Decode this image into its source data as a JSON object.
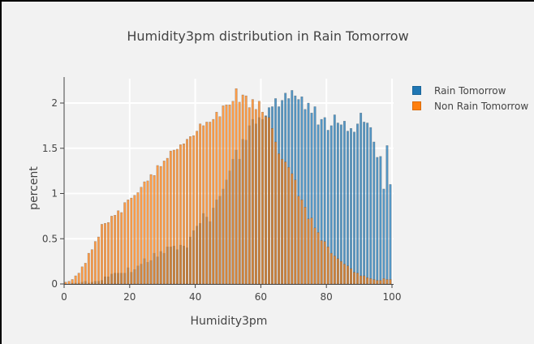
{
  "chart_data": {
    "type": "bar",
    "title": "Humidity3pm distribution in Rain Tomorrow",
    "xlabel": "Humidity3pm",
    "ylabel": "percent",
    "xlim": [
      0,
      100
    ],
    "ylim": [
      0,
      2.25
    ],
    "x_ticks": [
      "0",
      "20",
      "40",
      "60",
      "80",
      "100"
    ],
    "y_ticks": [
      "0",
      "0.5",
      "1",
      "1.5",
      "2"
    ],
    "grid": true,
    "barmode": "overlay",
    "legend_position": "right-top",
    "bin_width": 1,
    "x": [
      0,
      1,
      2,
      3,
      4,
      5,
      6,
      7,
      8,
      9,
      10,
      11,
      12,
      13,
      14,
      15,
      16,
      17,
      18,
      19,
      20,
      21,
      22,
      23,
      24,
      25,
      26,
      27,
      28,
      29,
      30,
      31,
      32,
      33,
      34,
      35,
      36,
      37,
      38,
      39,
      40,
      41,
      42,
      43,
      44,
      45,
      46,
      47,
      48,
      49,
      50,
      51,
      52,
      53,
      54,
      55,
      56,
      57,
      58,
      59,
      60,
      61,
      62,
      63,
      64,
      65,
      66,
      67,
      68,
      69,
      70,
      71,
      72,
      73,
      74,
      75,
      76,
      77,
      78,
      79,
      80,
      81,
      82,
      83,
      84,
      85,
      86,
      87,
      88,
      89,
      90,
      91,
      92,
      93,
      94,
      95,
      96,
      97,
      98,
      99
    ],
    "series": [
      {
        "name": "Rain Tomorrow",
        "color": "#1f77b4",
        "values": [
          0.0,
          0.0,
          0.01,
          0.01,
          0.01,
          0.02,
          0.03,
          0.01,
          0.02,
          0.03,
          0.03,
          0.04,
          0.08,
          0.08,
          0.11,
          0.12,
          0.12,
          0.12,
          0.12,
          0.18,
          0.13,
          0.16,
          0.2,
          0.22,
          0.28,
          0.24,
          0.26,
          0.34,
          0.3,
          0.36,
          0.34,
          0.41,
          0.41,
          0.42,
          0.38,
          0.43,
          0.42,
          0.4,
          0.52,
          0.59,
          0.64,
          0.67,
          0.78,
          0.74,
          0.69,
          0.84,
          0.93,
          0.97,
          1.05,
          1.15,
          1.25,
          1.38,
          1.48,
          1.38,
          1.6,
          1.59,
          1.75,
          1.82,
          1.77,
          1.84,
          1.82,
          1.86,
          1.95,
          1.96,
          2.05,
          1.96,
          2.03,
          2.11,
          2.05,
          2.14,
          2.08,
          2.04,
          2.07,
          1.93,
          2.0,
          1.89,
          1.96,
          1.76,
          1.82,
          1.84,
          1.7,
          1.75,
          1.87,
          1.78,
          1.76,
          1.8,
          1.69,
          1.72,
          1.68,
          1.77,
          1.89,
          1.79,
          1.78,
          1.73,
          1.57,
          1.4,
          1.41,
          1.05,
          1.53,
          1.1
        ]
      },
      {
        "name": "Non Rain Tomorrow",
        "color": "#ff7f0e",
        "values": [
          0.02,
          0.03,
          0.05,
          0.09,
          0.12,
          0.19,
          0.23,
          0.34,
          0.38,
          0.47,
          0.52,
          0.66,
          0.67,
          0.68,
          0.75,
          0.76,
          0.81,
          0.79,
          0.9,
          0.93,
          0.95,
          0.98,
          1.01,
          1.07,
          1.13,
          1.14,
          1.21,
          1.2,
          1.31,
          1.3,
          1.36,
          1.39,
          1.47,
          1.48,
          1.49,
          1.54,
          1.55,
          1.6,
          1.63,
          1.64,
          1.69,
          1.77,
          1.75,
          1.79,
          1.79,
          1.82,
          1.9,
          1.85,
          1.97,
          1.98,
          1.98,
          2.02,
          2.16,
          2.01,
          2.09,
          2.08,
          1.95,
          2.04,
          1.93,
          2.02,
          1.9,
          1.85,
          1.84,
          1.72,
          1.57,
          1.44,
          1.38,
          1.35,
          1.29,
          1.22,
          1.15,
          0.97,
          0.93,
          0.85,
          0.72,
          0.73,
          0.62,
          0.57,
          0.48,
          0.47,
          0.41,
          0.34,
          0.31,
          0.28,
          0.25,
          0.22,
          0.2,
          0.17,
          0.13,
          0.12,
          0.09,
          0.09,
          0.07,
          0.06,
          0.05,
          0.04,
          0.04,
          0.06,
          0.05,
          0.05
        ]
      }
    ]
  },
  "legend": {
    "items": [
      {
        "label": "Rain Tomorrow",
        "color": "#1f77b4"
      },
      {
        "label": "Non Rain Tomorrow",
        "color": "#ff7f0e"
      }
    ]
  }
}
